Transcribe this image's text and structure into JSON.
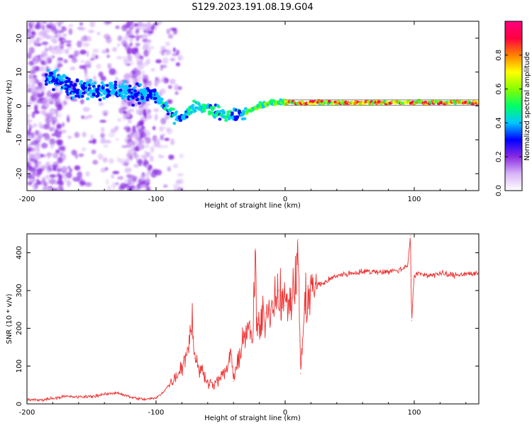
{
  "title": "S129.2023.191.08.19.G04",
  "chart_data": [
    {
      "type": "heatmap",
      "xlabel": "Height of straight line (km)",
      "ylabel": "Frequency (Hz)",
      "xlim": [
        -200,
        150
      ],
      "ylim": [
        -25,
        25
      ],
      "xticks": [
        -200,
        -100,
        0,
        100
      ],
      "xtick_labels": [
        "-200",
        "-100",
        "0",
        "100"
      ],
      "yticks": [
        -20,
        -10,
        0,
        10,
        20
      ],
      "ytick_labels": [
        "-20",
        "-10",
        "0",
        "10",
        "20"
      ],
      "colorbar": {
        "label": "Normalized spectral amplitude",
        "range": [
          0,
          1
        ],
        "ticks": [
          0.0,
          0.2,
          0.4,
          0.6,
          0.8
        ],
        "tick_labels": [
          "0.0",
          "0.2",
          "0.4",
          "0.6",
          "0.8"
        ],
        "colors": [
          "#ffffff",
          "#d8b4f8",
          "#8a2be2",
          "#0000ff",
          "#00c8ff",
          "#00ff66",
          "#88ff00",
          "#ffff00",
          "#ff8000",
          "#ff0040",
          "#ff0080"
        ]
      },
      "ridge": [
        {
          "x": -180,
          "y": 8
        },
        {
          "x": -160,
          "y": 5
        },
        {
          "x": -140,
          "y": 5
        },
        {
          "x": -120,
          "y": 4
        },
        {
          "x": -100,
          "y": 3
        },
        {
          "x": -90,
          "y": -2
        },
        {
          "x": -80,
          "y": -4
        },
        {
          "x": -70,
          "y": 0
        },
        {
          "x": -60,
          "y": -1
        },
        {
          "x": -50,
          "y": -2
        },
        {
          "x": -40,
          "y": -3
        },
        {
          "x": -30,
          "y": -2
        },
        {
          "x": -20,
          "y": 0
        },
        {
          "x": -10,
          "y": 1
        },
        {
          "x": 0,
          "y": 1
        },
        {
          "x": 20,
          "y": 1
        },
        {
          "x": 50,
          "y": 1
        },
        {
          "x": 80,
          "y": 1
        },
        {
          "x": 100,
          "y": 1
        },
        {
          "x": 120,
          "y": 1
        },
        {
          "x": 150,
          "y": 1
        }
      ]
    },
    {
      "type": "line",
      "xlabel": "Height of straight line (km)",
      "ylabel": "SNR (10 * v/v)",
      "xlim": [
        -200,
        150
      ],
      "ylim": [
        0,
        450
      ],
      "xticks": [
        -200,
        -100,
        0,
        100
      ],
      "xtick_labels": [
        "-200",
        "-100",
        "0",
        "100"
      ],
      "yticks": [
        0,
        100,
        200,
        300,
        400
      ],
      "ytick_labels": [
        "0",
        "100",
        "200",
        "300",
        "400"
      ],
      "series": [
        {
          "color": "#ee3333",
          "x": [
            -200,
            -190,
            -180,
            -170,
            -160,
            -150,
            -140,
            -130,
            -120,
            -110,
            -100,
            -95,
            -90,
            -85,
            -80,
            -75,
            -72,
            -70,
            -68,
            -65,
            -60,
            -55,
            -50,
            -45,
            -42,
            -40,
            -38,
            -35,
            -30,
            -25,
            -23,
            -22,
            -20,
            -18,
            -15,
            -12,
            -10,
            -5,
            0,
            5,
            8,
            10,
            12,
            15,
            18,
            20,
            25,
            30,
            40,
            50,
            60,
            70,
            80,
            90,
            95,
            97,
            98,
            100,
            105,
            110,
            120,
            130,
            140,
            150
          ],
          "y": [
            12,
            10,
            15,
            20,
            18,
            20,
            25,
            30,
            18,
            12,
            15,
            30,
            50,
            70,
            100,
            150,
            230,
            120,
            100,
            90,
            60,
            50,
            70,
            90,
            145,
            60,
            90,
            140,
            200,
            170,
            410,
            200,
            190,
            220,
            240,
            250,
            270,
            300,
            260,
            280,
            300,
            435,
            80,
            250,
            290,
            300,
            315,
            320,
            340,
            345,
            350,
            350,
            350,
            355,
            370,
            445,
            220,
            340,
            345,
            340,
            345,
            340,
            345,
            345
          ]
        }
      ]
    }
  ]
}
